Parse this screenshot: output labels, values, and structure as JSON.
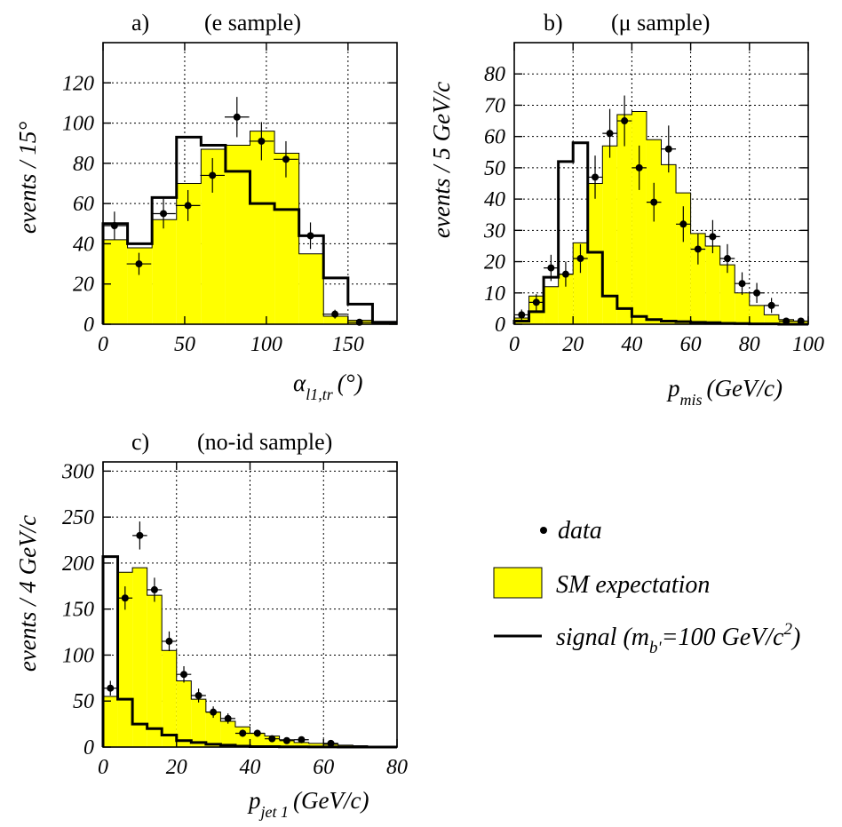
{
  "chart_data": [
    {
      "id": "a",
      "type": "bar",
      "panel_label": "a)",
      "title": "(e sample)",
      "ylabel": "events / 15°",
      "xlabel_main": "α",
      "xlabel_sub": "l1,tr",
      "xlabel_unit": "(°)",
      "xlim": [
        0,
        180
      ],
      "ylim": [
        0,
        140
      ],
      "xticks": [
        0,
        50,
        100,
        150
      ],
      "yticks": [
        0,
        20,
        40,
        60,
        80,
        100,
        120
      ],
      "bin_edges": [
        0,
        15,
        30,
        45,
        60,
        75,
        90,
        105,
        120,
        135,
        150,
        165,
        180
      ],
      "sm_expectation": [
        42,
        38,
        52,
        70,
        87,
        89,
        96,
        85,
        35,
        4,
        2,
        0.5
      ],
      "signal": [
        50,
        40,
        63,
        93,
        89,
        76,
        60,
        57,
        44,
        23,
        10,
        1
      ],
      "data": [
        {
          "x": 7,
          "y": 49,
          "err": 7
        },
        {
          "x": 22,
          "y": 30,
          "err": 5.5
        },
        {
          "x": 37,
          "y": 55,
          "err": 7.4
        },
        {
          "x": 52,
          "y": 59,
          "err": 7.7
        },
        {
          "x": 67,
          "y": 74,
          "err": 8.6
        },
        {
          "x": 82,
          "y": 103,
          "err": 10
        },
        {
          "x": 97,
          "y": 91,
          "err": 9.5
        },
        {
          "x": 112,
          "y": 82,
          "err": 9
        },
        {
          "x": 127,
          "y": 44,
          "err": 6.6
        },
        {
          "x": 142,
          "y": 5,
          "err": 2.2
        },
        {
          "x": 157,
          "y": 1,
          "err": 1
        }
      ]
    },
    {
      "id": "b",
      "type": "bar",
      "panel_label": "b)",
      "title": "(μ sample)",
      "ylabel": "events / 5 GeV/c",
      "xlabel_main": "p",
      "xlabel_sub": "mis",
      "xlabel_unit": "(GeV/c)",
      "xlim": [
        0,
        100
      ],
      "ylim": [
        0,
        90
      ],
      "xticks": [
        0,
        20,
        40,
        60,
        80,
        100
      ],
      "yticks": [
        0,
        10,
        20,
        30,
        40,
        50,
        60,
        70,
        80
      ],
      "bin_edges": [
        0,
        5,
        10,
        15,
        20,
        25,
        30,
        35,
        40,
        45,
        50,
        55,
        60,
        65,
        70,
        75,
        80,
        85,
        90,
        95,
        100
      ],
      "sm_expectation": [
        2,
        9,
        12,
        16,
        26,
        45,
        57,
        67,
        68,
        59,
        51,
        42,
        29,
        25,
        19,
        10,
        6,
        3,
        1.5,
        1
      ],
      "signal": [
        1,
        4,
        15,
        52,
        58,
        23,
        9,
        5,
        2.5,
        1.5,
        1,
        0.8,
        0.6,
        0.5,
        0.3,
        0.2,
        0.1,
        0.1,
        0,
        0
      ],
      "data": [
        {
          "x": 2.5,
          "y": 3,
          "err": 1.7
        },
        {
          "x": 7.5,
          "y": 7,
          "err": 2.6
        },
        {
          "x": 12.5,
          "y": 18,
          "err": 4.2
        },
        {
          "x": 17.5,
          "y": 16,
          "err": 4
        },
        {
          "x": 22.5,
          "y": 21,
          "err": 4.6
        },
        {
          "x": 27.5,
          "y": 47,
          "err": 6.9
        },
        {
          "x": 32.5,
          "y": 61,
          "err": 7.8
        },
        {
          "x": 37.5,
          "y": 65,
          "err": 8.1
        },
        {
          "x": 42.5,
          "y": 50,
          "err": 7.1
        },
        {
          "x": 47.5,
          "y": 39,
          "err": 6.2
        },
        {
          "x": 52.5,
          "y": 56,
          "err": 7.5
        },
        {
          "x": 57.5,
          "y": 32,
          "err": 5.7
        },
        {
          "x": 62.5,
          "y": 24,
          "err": 4.9
        },
        {
          "x": 67.5,
          "y": 28,
          "err": 5.3
        },
        {
          "x": 72.5,
          "y": 21,
          "err": 4.6
        },
        {
          "x": 77.5,
          "y": 13,
          "err": 3.6
        },
        {
          "x": 82.5,
          "y": 10,
          "err": 3.2
        },
        {
          "x": 87.5,
          "y": 6,
          "err": 2.4
        },
        {
          "x": 92.5,
          "y": 1,
          "err": 1
        },
        {
          "x": 97.5,
          "y": 1,
          "err": 1
        }
      ]
    },
    {
      "id": "c",
      "type": "bar",
      "panel_label": "c)",
      "title": "(no-id sample)",
      "ylabel": "events / 4 GeV/c",
      "xlabel_main": "p",
      "xlabel_sub": "jet 1",
      "xlabel_unit": "(GeV/c)",
      "xlim": [
        0,
        80
      ],
      "ylim": [
        0,
        310
      ],
      "xticks": [
        0,
        20,
        40,
        60,
        80
      ],
      "yticks": [
        0,
        50,
        100,
        150,
        200,
        250,
        300
      ],
      "bin_edges": [
        0,
        4,
        8,
        12,
        16,
        20,
        24,
        28,
        32,
        36,
        40,
        44,
        48,
        52,
        56,
        60,
        64,
        68,
        72,
        76,
        80
      ],
      "sm_expectation": [
        55,
        190,
        195,
        165,
        105,
        72,
        52,
        38,
        28,
        22,
        15,
        12,
        8,
        5,
        4,
        3,
        2,
        1.5,
        1,
        1
      ],
      "signal": [
        207,
        52,
        25,
        20,
        13,
        7,
        5,
        3,
        2,
        1,
        0.5,
        0.5,
        0.3,
        0.2,
        0.1,
        0.1,
        0,
        0,
        0,
        0
      ],
      "data": [
        {
          "x": 2,
          "y": 64,
          "err": 8
        },
        {
          "x": 6,
          "y": 162,
          "err": 12.7
        },
        {
          "x": 10,
          "y": 230,
          "err": 15.2
        },
        {
          "x": 14,
          "y": 171,
          "err": 13.1
        },
        {
          "x": 18,
          "y": 115,
          "err": 10.7
        },
        {
          "x": 22,
          "y": 79,
          "err": 8.9
        },
        {
          "x": 26,
          "y": 56,
          "err": 7.5
        },
        {
          "x": 30,
          "y": 38,
          "err": 6.2
        },
        {
          "x": 34,
          "y": 31,
          "err": 5.6
        },
        {
          "x": 38,
          "y": 15,
          "err": 3.9
        },
        {
          "x": 42,
          "y": 15,
          "err": 3.9
        },
        {
          "x": 46,
          "y": 9,
          "err": 3
        },
        {
          "x": 50,
          "y": 7,
          "err": 2.6
        },
        {
          "x": 54,
          "y": 8,
          "err": 2.8
        },
        {
          "x": 62,
          "y": 4,
          "err": 2
        }
      ]
    }
  ],
  "legend": {
    "data_label": "data",
    "sm_label": "SM expectation",
    "signal_prefix": "signal (m",
    "signal_sub": "b'",
    "signal_eq": "=100 GeV/c",
    "signal_sup": "2",
    "signal_close": ")",
    "sm_fill_color": "#ffff00",
    "line_color": "#000000"
  }
}
